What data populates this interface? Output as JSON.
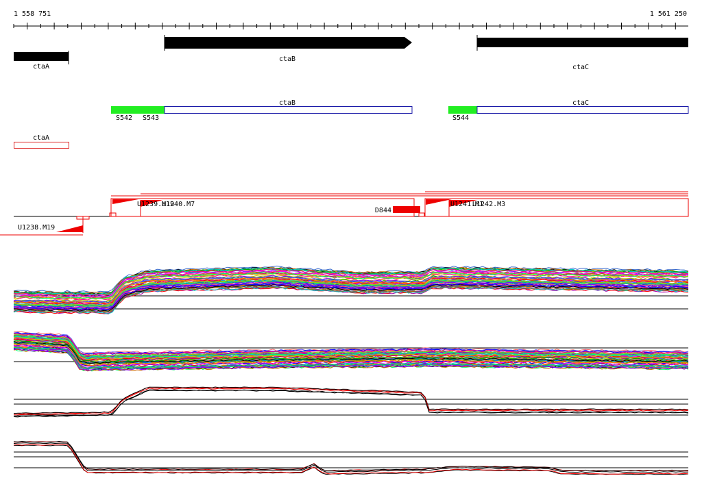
{
  "ruler": {
    "start_label": "1 558 751",
    "end_label": "1 561 250"
  },
  "genes_top": [
    {
      "name": "ctaA",
      "strand": "+"
    },
    {
      "name": "ctaB",
      "strand": "+"
    },
    {
      "name": "ctaC",
      "strand": "+"
    }
  ],
  "transcripts": [
    {
      "name": "ctaB",
      "utr_labels": [
        "S542",
        "S543"
      ],
      "utr_color": "#22ee22",
      "body_color": "#1a1aa8"
    },
    {
      "name": "ctaC",
      "utr_labels": [
        "S544"
      ],
      "utr_color": "#22ee22",
      "body_color": "#1a1aa8"
    },
    {
      "name": "ctaA",
      "body_color": "#dd2222"
    }
  ],
  "segments": {
    "labels": [
      "U1239.M19",
      "U1240.M7",
      "U1241.M1",
      "U1242.M3",
      "U1238.M19",
      "D844"
    ],
    "color": "#ee0000"
  },
  "colors": {
    "gene": "#000000",
    "accent": "#ee0000",
    "axis": "#000000"
  }
}
